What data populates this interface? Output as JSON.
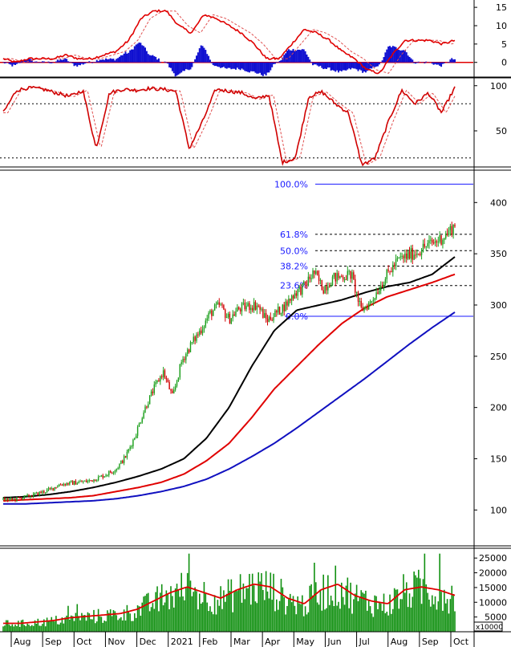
{
  "chart_data": [
    {
      "type": "line",
      "panel": "macd",
      "y_ticks": [
        15,
        10,
        5,
        0
      ],
      "ylim": [
        -4,
        17
      ],
      "grid": false
    },
    {
      "type": "line",
      "panel": "stochastic",
      "y_ticks": [
        100,
        50
      ],
      "ylim": [
        10,
        106
      ],
      "reference_lines": [
        80,
        20
      ]
    },
    {
      "type": "candlestick",
      "panel": "price",
      "y_ticks": [
        400,
        350,
        300,
        250,
        200,
        150,
        100
      ],
      "ylim": [
        65,
        430
      ],
      "moving_averages": [
        {
          "color": "#000000",
          "start": 112,
          "end": 347
        },
        {
          "color": "#e00000",
          "start": 109,
          "end": 330
        },
        {
          "color": "#1010c0",
          "start": 106,
          "end": 293
        }
      ],
      "fibonacci": {
        "levels": [
          {
            "label": "100.0%",
            "value": 418
          },
          {
            "label": "61.8%",
            "value": 369
          },
          {
            "label": "50.0%",
            "value": 353
          },
          {
            "label": "38.2%",
            "value": 338
          },
          {
            "label": "23.6%",
            "value": 319
          },
          {
            "label": "0.0%",
            "value": 289
          }
        ]
      },
      "price_path": [
        110,
        110,
        112,
        114,
        117,
        120,
        125,
        126,
        127,
        128,
        131,
        135,
        140,
        152,
        172,
        198,
        218,
        235,
        210,
        246,
        262,
        276,
        292,
        300,
        286,
        296,
        299,
        300,
        285,
        292,
        300,
        312,
        318,
        332,
        316,
        326,
        328,
        330,
        295,
        302,
        318,
        332,
        344,
        348,
        352,
        358,
        362,
        368,
        378
      ]
    },
    {
      "type": "bar",
      "panel": "volume",
      "y_ticks": [
        25000,
        20000,
        15000,
        10000,
        5000
      ],
      "ylim": [
        0,
        27500
      ],
      "unit_label": "x10000"
    }
  ],
  "x_axis": {
    "labels": [
      "Aug",
      "Sep",
      "Oct",
      "Nov",
      "Dec",
      "2021",
      "Feb",
      "Mar",
      "Apr",
      "May",
      "Jun",
      "Jul",
      "Aug",
      "Sep",
      "Oct"
    ]
  },
  "colors": {
    "up": "#1a9e1a",
    "down": "#d00000",
    "ma_short": "#000000",
    "ma_mid": "#e00000",
    "ma_long": "#1010c0",
    "fib": "#1a1aff",
    "volume": "#109010"
  }
}
